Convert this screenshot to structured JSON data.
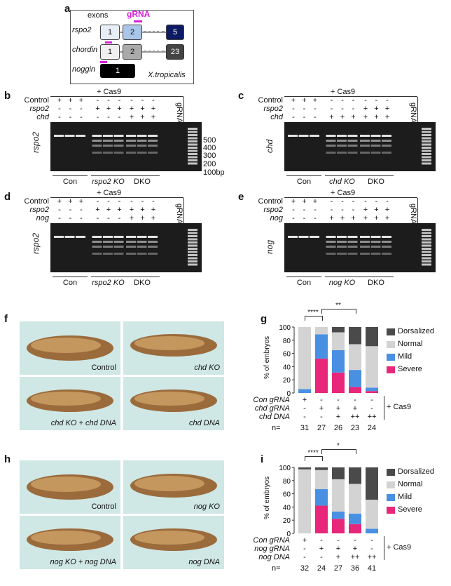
{
  "panel_labels": {
    "a": "a",
    "b": "b",
    "c": "c",
    "d": "d",
    "e": "e",
    "f": "f",
    "g": "g",
    "h": "h",
    "i": "i"
  },
  "a": {
    "exons_label": "exons",
    "grna_label": "gRNA",
    "species": "X.tropicalis",
    "genes": [
      {
        "name": "rspo2",
        "exons": [
          "1",
          "2",
          "5"
        ]
      },
      {
        "name": "chordin",
        "exons": [
          "1",
          "2",
          "23"
        ]
      },
      {
        "name": "noggin",
        "exons": [
          "1"
        ]
      }
    ]
  },
  "gel_b": {
    "cas9": "+ Cas9",
    "grna": "gRNA",
    "row_labels": [
      "Control",
      "rspo2",
      "chd"
    ],
    "rows": [
      [
        "+",
        "+",
        "+",
        "-",
        "-",
        "-",
        "-",
        "-",
        "-"
      ],
      [
        "-",
        "-",
        "-",
        "+",
        "+",
        "+",
        "+",
        "+",
        "+"
      ],
      [
        "-",
        "-",
        "-",
        "-",
        "-",
        "-",
        "+",
        "+",
        "+"
      ]
    ],
    "side_label": "rspo2",
    "sizes": [
      "500",
      "400",
      "300",
      "200",
      "100bp"
    ],
    "groups": [
      "Con",
      "rspo2 KO",
      "DKO"
    ]
  },
  "gel_c": {
    "cas9": "+ Cas9",
    "grna": "gRNA",
    "row_labels": [
      "Control",
      "rspo2",
      "chd"
    ],
    "rows": [
      [
        "+",
        "+",
        "+",
        "-",
        "-",
        "-",
        "-",
        "-",
        "-"
      ],
      [
        "-",
        "-",
        "-",
        "-",
        "-",
        "-",
        "+",
        "+",
        "+"
      ],
      [
        "-",
        "-",
        "-",
        "+",
        "+",
        "+",
        "+",
        "+",
        "+"
      ]
    ],
    "side_label": "chd",
    "groups": [
      "Con",
      "chd KO",
      "DKO"
    ]
  },
  "gel_d": {
    "cas9": "+ Cas9",
    "grna": "gRNA",
    "row_labels": [
      "Control",
      "rspo2",
      "nog"
    ],
    "rows": [
      [
        "+",
        "+",
        "+",
        "-",
        "-",
        "-",
        "-",
        "-",
        "-"
      ],
      [
        "-",
        "-",
        "-",
        "+",
        "+",
        "+",
        "+",
        "+",
        "+"
      ],
      [
        "-",
        "-",
        "-",
        "-",
        "-",
        "-",
        "+",
        "+",
        "+"
      ]
    ],
    "side_label": "rspo2",
    "groups": [
      "Con",
      "rspo2 KO",
      "DKO"
    ]
  },
  "gel_e": {
    "cas9": "+ Cas9",
    "grna": "gRNA",
    "row_labels": [
      "Control",
      "rspo2",
      "nog"
    ],
    "rows": [
      [
        "+",
        "+",
        "+",
        "-",
        "-",
        "-",
        "-",
        "-",
        "-"
      ],
      [
        "-",
        "-",
        "-",
        "-",
        "-",
        "-",
        "+",
        "+",
        "+"
      ],
      [
        "-",
        "-",
        "-",
        "+",
        "+",
        "+",
        "+",
        "+",
        "+"
      ]
    ],
    "side_label": "nog",
    "groups": [
      "Con",
      "nog KO",
      "DKO"
    ]
  },
  "f_images": {
    "tl": "Control",
    "tr": "chd KO",
    "bl": "chd KO + chd DNA",
    "br": "chd DNA"
  },
  "h_images": {
    "tl": "Control",
    "tr": "nog KO",
    "bl": "nog KO + nog DNA",
    "br": "nog DNA"
  },
  "colors": {
    "Dorsalized": "#4a4a4a",
    "Normal": "#d3d3d3",
    "Mild": "#4a90e2",
    "Severe": "#e8277a"
  },
  "chart_data": [
    {
      "type": "bar",
      "stacked": true,
      "ylabel": "% of embryos",
      "ylim": [
        0,
        100
      ],
      "yticks": [
        "0",
        "20",
        "40",
        "60",
        "80",
        "100"
      ],
      "legend": [
        "Dorsalized",
        "Normal",
        "Mild",
        "Severe"
      ],
      "series": [
        {
          "name": "Severe",
          "values": [
            0,
            52,
            31,
            9,
            3
          ]
        },
        {
          "name": "Mild",
          "values": [
            6,
            37,
            34,
            26,
            5
          ]
        },
        {
          "name": "Normal",
          "values": [
            94,
            11,
            27,
            39,
            63
          ]
        },
        {
          "name": "Dorsalized",
          "values": [
            0,
            0,
            8,
            26,
            29
          ]
        }
      ],
      "condition_rows": [
        {
          "label": "Con gRNA",
          "values": [
            "+",
            "-",
            "-",
            "-",
            "-"
          ]
        },
        {
          "label": "chd gRNA",
          "values": [
            "-",
            "+",
            "+",
            "+",
            "-"
          ]
        },
        {
          "label": "chd DNA",
          "values": [
            "-",
            "-",
            "+",
            "++",
            "++"
          ]
        }
      ],
      "cas9": "+ Cas9",
      "n_label": "n=",
      "n": [
        "31",
        "27",
        "26",
        "23",
        "24"
      ],
      "significance": [
        "****",
        "**"
      ]
    },
    {
      "type": "bar",
      "stacked": true,
      "ylabel": "% of embryos",
      "ylim": [
        0,
        100
      ],
      "yticks": [
        "0",
        "20",
        "40",
        "60",
        "80",
        "100"
      ],
      "legend": [
        "Dorsalized",
        "Normal",
        "Mild",
        "Severe"
      ],
      "series": [
        {
          "name": "Severe",
          "values": [
            0,
            42,
            22,
            14,
            0
          ]
        },
        {
          "name": "Mild",
          "values": [
            0,
            25,
            11,
            16,
            7
          ]
        },
        {
          "name": "Normal",
          "values": [
            97,
            29,
            49,
            45,
            44
          ]
        },
        {
          "name": "Dorsalized",
          "values": [
            3,
            4,
            18,
            25,
            49
          ]
        }
      ],
      "condition_rows": [
        {
          "label": "Con gRNA",
          "values": [
            "+",
            "-",
            "-",
            "-",
            "-"
          ]
        },
        {
          "label": "nog gRNA",
          "values": [
            "-",
            "+",
            "+",
            "+",
            "-"
          ]
        },
        {
          "label": "nog DNA",
          "values": [
            "-",
            "-",
            "+",
            "++",
            "++"
          ]
        }
      ],
      "cas9": "+ Cas9",
      "n_label": "n=",
      "n": [
        "32",
        "24",
        "27",
        "36",
        "41"
      ],
      "significance": [
        "****",
        "*"
      ]
    }
  ]
}
